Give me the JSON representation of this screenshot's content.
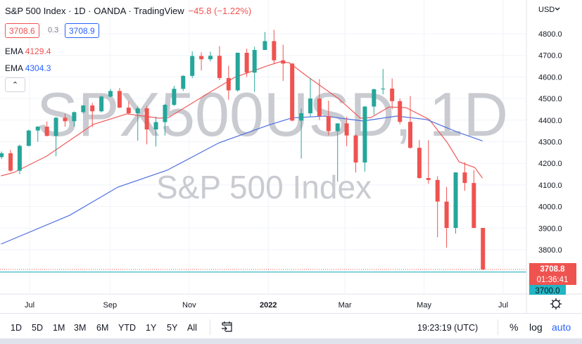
{
  "header": {
    "title": "S&P 500 Index · 1D · OANDA · TradingView",
    "change": "−45.8 (−1.22%)",
    "bid": "3708.6",
    "spread": "0.3",
    "ask": "3708.9",
    "ema1_label": "EMA",
    "ema1_value": "4129.4",
    "ema2_label": "EMA",
    "ema2_value": "4304.3",
    "collapse_icon": "chevron-up-icon"
  },
  "watermark": {
    "symbol": "SPX500USD, 1D",
    "name": "S&P 500 Index"
  },
  "price_axis": {
    "currency": "USD",
    "last_price": "3708.8",
    "countdown": "01:36:41",
    "line_price": "3700.0",
    "settings_icon": "gear-icon"
  },
  "bottom_bar": {
    "periods": [
      "1D",
      "5D",
      "1M",
      "3M",
      "6M",
      "YTD",
      "1Y",
      "5Y",
      "All"
    ],
    "go_to_date_icon": "calendar-arrow-icon",
    "clock": "19:23:19 (UTC)",
    "percent": "%",
    "log": "log",
    "auto": "auto"
  },
  "colors": {
    "up": "#26a69a",
    "down": "#ef5350",
    "ema1": "#f05b5b",
    "ema2": "#4f6fe0",
    "accent": "#2962ff",
    "hline": "#22b5c3"
  },
  "chart_data": {
    "type": "candlestick",
    "title": "S&P 500 Index · 1D · OANDA",
    "grid": true,
    "ylim": [
      3700,
      4850
    ],
    "y_ticks": [
      "4800.0",
      "4700.0",
      "4600.0",
      "4500.0",
      "4400.0",
      "4300.0",
      "4200.0",
      "4100.0",
      "4000.0",
      "3900.0",
      "3800.0"
    ],
    "x_ticks": [
      [
        "2021-07-01",
        "Jul"
      ],
      [
        "2021-09-01",
        "Sep"
      ],
      [
        "2021-11-01",
        "Nov"
      ],
      [
        "2022-01-01",
        "2022"
      ],
      [
        "2022-03-01",
        "Mar"
      ],
      [
        "2022-05-01",
        "May"
      ],
      [
        "2022-07-01",
        "Jul"
      ]
    ],
    "candles_columns": [
      "date",
      "open",
      "high",
      "low",
      "close"
    ],
    "candles": [
      [
        "2021-06-04",
        4205,
        4235,
        4180,
        4229
      ],
      [
        "2021-06-11",
        4229,
        4255,
        4220,
        4247
      ],
      [
        "2021-06-18",
        4247,
        4262,
        4160,
        4166
      ],
      [
        "2021-06-25",
        4166,
        4287,
        4150,
        4281
      ],
      [
        "2021-07-02",
        4281,
        4356,
        4278,
        4352
      ],
      [
        "2021-07-09",
        4352,
        4372,
        4300,
        4370
      ],
      [
        "2021-07-16",
        4370,
        4394,
        4325,
        4327
      ],
      [
        "2021-07-23",
        4327,
        4415,
        4233,
        4411
      ],
      [
        "2021-07-30",
        4411,
        4430,
        4370,
        4395
      ],
      [
        "2021-08-06",
        4395,
        4440,
        4370,
        4437
      ],
      [
        "2021-08-13",
        4437,
        4470,
        4430,
        4468
      ],
      [
        "2021-08-20",
        4468,
        4480,
        4368,
        4441
      ],
      [
        "2021-08-27",
        4441,
        4513,
        4436,
        4509
      ],
      [
        "2021-09-03",
        4509,
        4545,
        4505,
        4535
      ],
      [
        "2021-09-10",
        4535,
        4549,
        4456,
        4458
      ],
      [
        "2021-09-17",
        4458,
        4486,
        4427,
        4432
      ],
      [
        "2021-09-24",
        4432,
        4465,
        4305,
        4455
      ],
      [
        "2021-10-01",
        4455,
        4465,
        4288,
        4357
      ],
      [
        "2021-10-08",
        4357,
        4416,
        4278,
        4391
      ],
      [
        "2021-10-15",
        4391,
        4475,
        4329,
        4471
      ],
      [
        "2021-10-22",
        4471,
        4559,
        4465,
        4545
      ],
      [
        "2021-10-29",
        4545,
        4608,
        4535,
        4605
      ],
      [
        "2021-11-05",
        4605,
        4718,
        4595,
        4697
      ],
      [
        "2021-11-12",
        4697,
        4714,
        4630,
        4682
      ],
      [
        "2021-11-19",
        4682,
        4717,
        4672,
        4698
      ],
      [
        "2021-11-26",
        4698,
        4743,
        4585,
        4595
      ],
      [
        "2021-12-03",
        4595,
        4652,
        4495,
        4538
      ],
      [
        "2021-12-10",
        4538,
        4713,
        4532,
        4712
      ],
      [
        "2021-12-17",
        4712,
        4731,
        4600,
        4620
      ],
      [
        "2021-12-23",
        4620,
        4740,
        4531,
        4725
      ],
      [
        "2021-12-31",
        4725,
        4808,
        4725,
        4766
      ],
      [
        "2022-01-07",
        4766,
        4818,
        4662,
        4677
      ],
      [
        "2022-01-14",
        4677,
        4749,
        4582,
        4662
      ],
      [
        "2022-01-21",
        4662,
        4664,
        4395,
        4398
      ],
      [
        "2022-01-28",
        4398,
        4453,
        4222,
        4432
      ],
      [
        "2022-02-04",
        4432,
        4595,
        4414,
        4500
      ],
      [
        "2022-02-11",
        4500,
        4590,
        4401,
        4419
      ],
      [
        "2022-02-18",
        4419,
        4490,
        4330,
        4349
      ],
      [
        "2022-02-25",
        4349,
        4385,
        4115,
        4385
      ],
      [
        "2022-03-04",
        4385,
        4416,
        4279,
        4329
      ],
      [
        "2022-03-11",
        4329,
        4335,
        4158,
        4204
      ],
      [
        "2022-03-18",
        4204,
        4465,
        4162,
        4463
      ],
      [
        "2022-03-25",
        4463,
        4546,
        4425,
        4543
      ],
      [
        "2022-04-01",
        4543,
        4637,
        4520,
        4546
      ],
      [
        "2022-04-08",
        4546,
        4593,
        4450,
        4488
      ],
      [
        "2022-04-14",
        4488,
        4500,
        4381,
        4392
      ],
      [
        "2022-04-22",
        4392,
        4512,
        4267,
        4272
      ],
      [
        "2022-04-29",
        4272,
        4308,
        4129,
        4132
      ],
      [
        "2022-05-06",
        4132,
        4307,
        4106,
        4123
      ],
      [
        "2022-05-13",
        4123,
        4140,
        3858,
        4023
      ],
      [
        "2022-05-20",
        4023,
        4090,
        3810,
        3901
      ],
      [
        "2022-05-27",
        3901,
        4158,
        3875,
        4158
      ],
      [
        "2022-06-03",
        4158,
        4205,
        4073,
        4109
      ],
      [
        "2022-06-10",
        4109,
        4169,
        3900,
        3901
      ],
      [
        "2022-06-17",
        3901,
        3901,
        3705,
        3709
      ]
    ],
    "series": [
      {
        "name": "EMA",
        "value_label": "4129.4",
        "points": [
          [
            "2021-06-09",
            4142
          ],
          [
            "2021-06-19",
            4158
          ],
          [
            "2021-07-14",
            4233
          ],
          [
            "2021-08-19",
            4380
          ],
          [
            "2021-09-14",
            4429
          ],
          [
            "2021-10-09",
            4409
          ],
          [
            "2021-10-16",
            4412
          ],
          [
            "2021-11-18",
            4533
          ],
          [
            "2021-12-06",
            4598
          ],
          [
            "2022-01-01",
            4653
          ],
          [
            "2022-01-10",
            4670
          ],
          [
            "2022-01-17",
            4666
          ],
          [
            "2022-02-01",
            4598
          ],
          [
            "2022-02-24",
            4500
          ],
          [
            "2022-03-13",
            4409
          ],
          [
            "2022-03-21",
            4412
          ],
          [
            "2022-04-04",
            4461
          ],
          [
            "2022-04-17",
            4458
          ],
          [
            "2022-05-05",
            4403
          ],
          [
            "2022-05-19",
            4295
          ],
          [
            "2022-05-28",
            4207
          ],
          [
            "2022-06-09",
            4181
          ],
          [
            "2022-06-15",
            4132
          ]
        ]
      },
      {
        "name": "EMA",
        "value_label": "4304.3",
        "points": [
          [
            "2021-06-09",
            3826
          ],
          [
            "2021-08-01",
            3960
          ],
          [
            "2021-09-07",
            4090
          ],
          [
            "2021-10-15",
            4168
          ],
          [
            "2021-11-24",
            4295
          ],
          [
            "2022-01-01",
            4377
          ],
          [
            "2022-01-19",
            4410
          ],
          [
            "2022-02-13",
            4419
          ],
          [
            "2022-03-15",
            4396
          ],
          [
            "2022-04-10",
            4419
          ],
          [
            "2022-05-03",
            4403
          ],
          [
            "2022-05-27",
            4344
          ],
          [
            "2022-06-15",
            4304
          ]
        ]
      }
    ],
    "last_price": 3708.8,
    "horizontal_line": 3700.0
  }
}
